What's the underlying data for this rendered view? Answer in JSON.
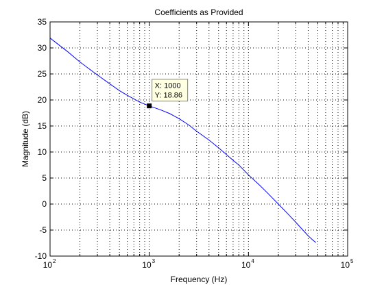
{
  "chart_data": {
    "type": "line",
    "title": "Coefficients as Provided",
    "xlabel": "Frequency (Hz)",
    "ylabel": "Magnitude (dB)",
    "xscale": "log",
    "xlim": [
      100,
      100000
    ],
    "ylim": [
      -10,
      35
    ],
    "grid": true,
    "x_ticks": [
      {
        "value": 100,
        "base": "10",
        "exp": "2"
      },
      {
        "value": 1000,
        "base": "10",
        "exp": "3"
      },
      {
        "value": 10000,
        "base": "10",
        "exp": "4"
      },
      {
        "value": 100000,
        "base": "10",
        "exp": "5"
      }
    ],
    "y_ticks": [
      -10,
      -5,
      0,
      5,
      10,
      15,
      20,
      25,
      30,
      35
    ],
    "series": [
      {
        "color": "#0000ff",
        "x": [
          100,
          150,
          200,
          300,
          400,
          500,
          600,
          700,
          800,
          1000,
          1300,
          1600,
          2000,
          2500,
          3000,
          4000,
          5000,
          6000,
          7000,
          8000,
          10000,
          13000,
          16000,
          20000,
          25000,
          30000,
          35000,
          40000,
          45000,
          48000
        ],
        "y": [
          31.9,
          29.3,
          27.3,
          24.8,
          23.1,
          21.8,
          20.9,
          20.2,
          19.6,
          18.86,
          18.1,
          17.4,
          16.4,
          15.2,
          14.0,
          12.3,
          10.8,
          9.5,
          8.4,
          7.5,
          5.6,
          3.6,
          1.9,
          0.0,
          -1.9,
          -3.5,
          -4.9,
          -6.1,
          -7.0,
          -7.4
        ]
      }
    ],
    "datatip": {
      "x": 1000,
      "y": 18.86,
      "x_text": "X: 1000",
      "y_text": "Y: 18.86"
    }
  }
}
